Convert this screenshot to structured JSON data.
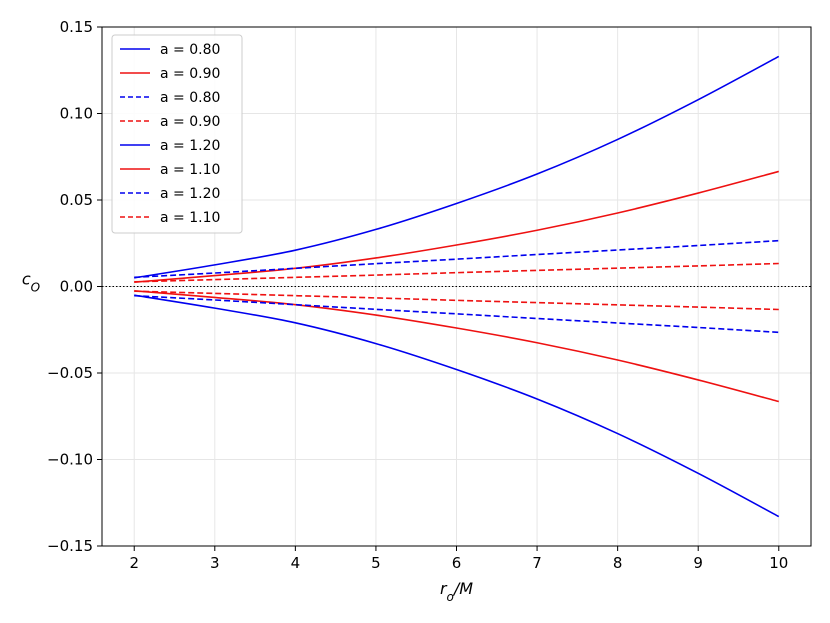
{
  "chart_data": {
    "type": "line",
    "xlabel": "r_o/M",
    "ylabel": "c_O",
    "xlim": [
      1.6,
      10.4
    ],
    "ylim": [
      -0.15,
      0.15
    ],
    "xticks": [
      "2",
      "3",
      "4",
      "5",
      "6",
      "7",
      "8",
      "9",
      "10"
    ],
    "yticks": [
      "0.15",
      "0.10",
      "0.05",
      "0.00",
      "−0.05",
      "−0.10",
      "−0.15"
    ],
    "grid": true,
    "legend_position": "top-left",
    "reference_line": {
      "y": 0,
      "style": "dotted",
      "color": "#000000"
    },
    "x": [
      2,
      3,
      4,
      5,
      6,
      7,
      8,
      9,
      10
    ],
    "series": [
      {
        "name": "a = 0.80",
        "color": "#0000ee",
        "style": "solid",
        "values": [
          0.005,
          0.0125,
          0.021,
          0.033,
          0.048,
          0.065,
          0.085,
          0.108,
          0.133
        ]
      },
      {
        "name": "a = 0.90",
        "color": "#ee1111",
        "style": "solid",
        "values": [
          0.0025,
          0.0063,
          0.0105,
          0.0165,
          0.024,
          0.0325,
          0.0425,
          0.054,
          0.0665
        ]
      },
      {
        "name": "a = 0.80",
        "color": "#0000ee",
        "style": "dashed",
        "values": [
          0.0053,
          0.0078,
          0.0105,
          0.0132,
          0.0158,
          0.0185,
          0.0211,
          0.0237,
          0.0265
        ]
      },
      {
        "name": "a = 0.90",
        "color": "#ee1111",
        "style": "dashed",
        "values": [
          0.0027,
          0.004,
          0.0053,
          0.0066,
          0.008,
          0.0093,
          0.0106,
          0.0119,
          0.0133
        ]
      },
      {
        "name": "a = 1.20",
        "color": "#0000ee",
        "style": "solid",
        "values": [
          -0.005,
          -0.0125,
          -0.021,
          -0.033,
          -0.048,
          -0.065,
          -0.085,
          -0.108,
          -0.133
        ]
      },
      {
        "name": "a = 1.10",
        "color": "#ee1111",
        "style": "solid",
        "values": [
          -0.0025,
          -0.0063,
          -0.0105,
          -0.0165,
          -0.024,
          -0.0325,
          -0.0425,
          -0.054,
          -0.0665
        ]
      },
      {
        "name": "a = 1.20",
        "color": "#0000ee",
        "style": "dashed",
        "values": [
          -0.0053,
          -0.0078,
          -0.0105,
          -0.0132,
          -0.0158,
          -0.0185,
          -0.0211,
          -0.0237,
          -0.0265
        ]
      },
      {
        "name": "a = 1.10",
        "color": "#ee1111",
        "style": "dashed",
        "values": [
          -0.0027,
          -0.004,
          -0.0053,
          -0.0066,
          -0.008,
          -0.0093,
          -0.0106,
          -0.0119,
          -0.0133
        ]
      }
    ]
  }
}
